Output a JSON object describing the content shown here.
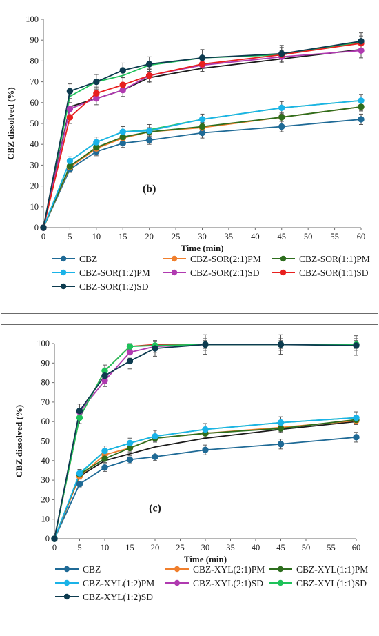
{
  "chart_data": [
    {
      "type": "line",
      "panel_label": "(b)",
      "xlabel": "Time (min)",
      "ylabel": "CBZ  dissolved (%)",
      "xlim": [
        0,
        60
      ],
      "ylim": [
        0,
        100
      ],
      "xticks": [
        0,
        5,
        10,
        15,
        20,
        25,
        30,
        35,
        40,
        45,
        50,
        55,
        60
      ],
      "yticks": [
        0,
        10,
        20,
        30,
        40,
        50,
        60,
        70,
        80,
        90,
        100
      ],
      "x": [
        0,
        5,
        10,
        15,
        20,
        30,
        45,
        60
      ],
      "grid": false,
      "legend_position": "bottom",
      "series": [
        {
          "name": "CBZ",
          "color": "#1f6a96",
          "values": [
            0,
            28,
            36.5,
            40.5,
            42,
            45.5,
            48.5,
            52
          ],
          "err": [
            0,
            1.5,
            2,
            2,
            2,
            2.5,
            2.5,
            2.5
          ]
        },
        {
          "name": "CBZ-SOR(2:1)PM",
          "color": "#f07f2d",
          "values": [
            0,
            29,
            38,
            43,
            46,
            48,
            53,
            58
          ],
          "err": [
            0,
            1.5,
            2,
            2,
            2,
            2,
            2,
            2
          ]
        },
        {
          "name": "CBZ-SOR(1:1)PM",
          "color": "#2e6e1e",
          "values": [
            0,
            29.5,
            38.5,
            43.5,
            46,
            48.5,
            53,
            58
          ],
          "err": [
            0,
            1.5,
            2,
            2,
            2,
            2,
            2,
            2
          ]
        },
        {
          "name": "CBZ-SOR(1:2)PM",
          "color": "#1ab3e8",
          "values": [
            0,
            32,
            41,
            46,
            46.5,
            52,
            57.5,
            61
          ],
          "err": [
            0,
            2,
            2.5,
            2.5,
            3,
            2.5,
            3,
            3
          ]
        },
        {
          "name": "CBZ-SOR(2:1)SD",
          "color": "#b03ab0",
          "values": [
            0,
            57,
            62,
            66,
            73,
            78,
            82,
            85
          ],
          "err": [
            0,
            3,
            3,
            3,
            3,
            3,
            3,
            3.5
          ]
        },
        {
          "name": "CBZ-SOR(1:1)SD",
          "color": "#e8201e",
          "values": [
            0,
            53,
            64.5,
            68.5,
            73,
            78.5,
            83,
            88.5
          ],
          "err": [
            0,
            3,
            3,
            3.5,
            3.5,
            3.5,
            3.5,
            3.5
          ]
        },
        {
          "name": "CBZ-SOR(1:2)SD",
          "color": "#0d3b4f",
          "values": [
            0,
            65.5,
            70,
            75.5,
            78.5,
            81.5,
            83.5,
            89.5
          ],
          "err": [
            0,
            3.5,
            3.5,
            3.5,
            3.5,
            4,
            4,
            4
          ]
        }
      ],
      "extra_lines": [
        {
          "name": "CBZ-SOR(1:2)SD",
          "color": "#1ec25a",
          "values": [
            0,
            63,
            70,
            73,
            78,
            81.5,
            83,
            89
          ]
        },
        {
          "name": "CBZ-SOR(2:1)PM",
          "color": "#1a1a1a",
          "values": [
            0,
            58,
            62,
            66,
            72,
            76.5,
            81,
            85.5
          ]
        },
        {
          "name": "CBZ-SOR(1:2)PM",
          "color": "#2bc46a",
          "values": [
            0,
            32,
            41,
            46,
            47,
            52,
            57.5,
            61
          ]
        }
      ]
    },
    {
      "type": "line",
      "panel_label": "(c)",
      "xlabel": "Time (min)",
      "ylabel": "CBZ  dissolved (%)",
      "xlim": [
        0,
        60
      ],
      "ylim": [
        0,
        100
      ],
      "xticks": [
        0,
        5,
        10,
        15,
        20,
        25,
        30,
        35,
        40,
        45,
        50,
        55,
        60
      ],
      "yticks": [
        0,
        10,
        20,
        30,
        40,
        50,
        60,
        70,
        80,
        90,
        100
      ],
      "x": [
        0,
        5,
        10,
        15,
        20,
        30,
        45,
        60
      ],
      "grid": false,
      "legend_position": "bottom",
      "series": [
        {
          "name": "CBZ",
          "color": "#1f6a96",
          "values": [
            0,
            28,
            36.5,
            40.5,
            42,
            45.5,
            48.5,
            52
          ],
          "err": [
            0,
            1.5,
            2,
            2,
            2,
            2.5,
            2.5,
            2.5
          ]
        },
        {
          "name": "CBZ-XYL(2:1)PM",
          "color": "#f07f2d",
          "values": [
            0,
            32,
            43,
            46.5,
            51.5,
            54,
            57,
            60.5
          ],
          "err": [
            0,
            1.5,
            2,
            2,
            2,
            2,
            2,
            2
          ]
        },
        {
          "name": "CBZ-XYL(1:1)PM",
          "color": "#2e6e1e",
          "values": [
            0,
            33,
            41,
            46.5,
            51.5,
            54,
            56.5,
            61
          ],
          "err": [
            0,
            1.5,
            2,
            2,
            2,
            2,
            2,
            2
          ]
        },
        {
          "name": "CBZ-XYL(1:2)PM",
          "color": "#1ab3e8",
          "values": [
            0,
            33.5,
            45,
            49,
            52.5,
            56,
            59.5,
            62
          ],
          "err": [
            0,
            2,
            2.5,
            2.5,
            3,
            3,
            3,
            3
          ]
        },
        {
          "name": "CBZ-XYL(2:1)SD",
          "color": "#b03ab0",
          "values": [
            0,
            65,
            81,
            95.5,
            98.5,
            99.5,
            99.5,
            99.5
          ],
          "err": [
            0,
            3,
            3,
            3,
            3,
            3,
            3,
            3
          ]
        },
        {
          "name": "CBZ-XYL(1:1)SD",
          "color": "#1ec25a",
          "values": [
            0,
            62,
            86,
            98.5,
            99,
            99.5,
            99.5,
            99.5
          ],
          "err": [
            0,
            3,
            3,
            1.5,
            2,
            2,
            2,
            2
          ]
        },
        {
          "name": "CBZ-XYL(1:2)SD",
          "color": "#0d3b4f",
          "values": [
            0,
            65.5,
            83.5,
            91,
            97.5,
            99.5,
            99.5,
            99
          ],
          "err": [
            0,
            3.5,
            4,
            4,
            4,
            5,
            5,
            5
          ]
        }
      ],
      "extra_lines": [
        {
          "name": "CBZ-XYL(1:1)PM",
          "color": "#e8201e",
          "values": [
            0,
            62,
            86,
            98.5,
            99.5,
            99.5,
            99.5,
            99.5
          ]
        },
        {
          "name": "CBZ-XYL(2:1)PM",
          "color": "#1a1a1a",
          "values": [
            0,
            32,
            40,
            43.5,
            47,
            51.5,
            56,
            60
          ]
        },
        {
          "name": "CBZ-XYL(1:1)SD",
          "color": "#2bc46a",
          "values": [
            0,
            33,
            45,
            49,
            52.5,
            56,
            59.5,
            62
          ]
        }
      ]
    }
  ]
}
